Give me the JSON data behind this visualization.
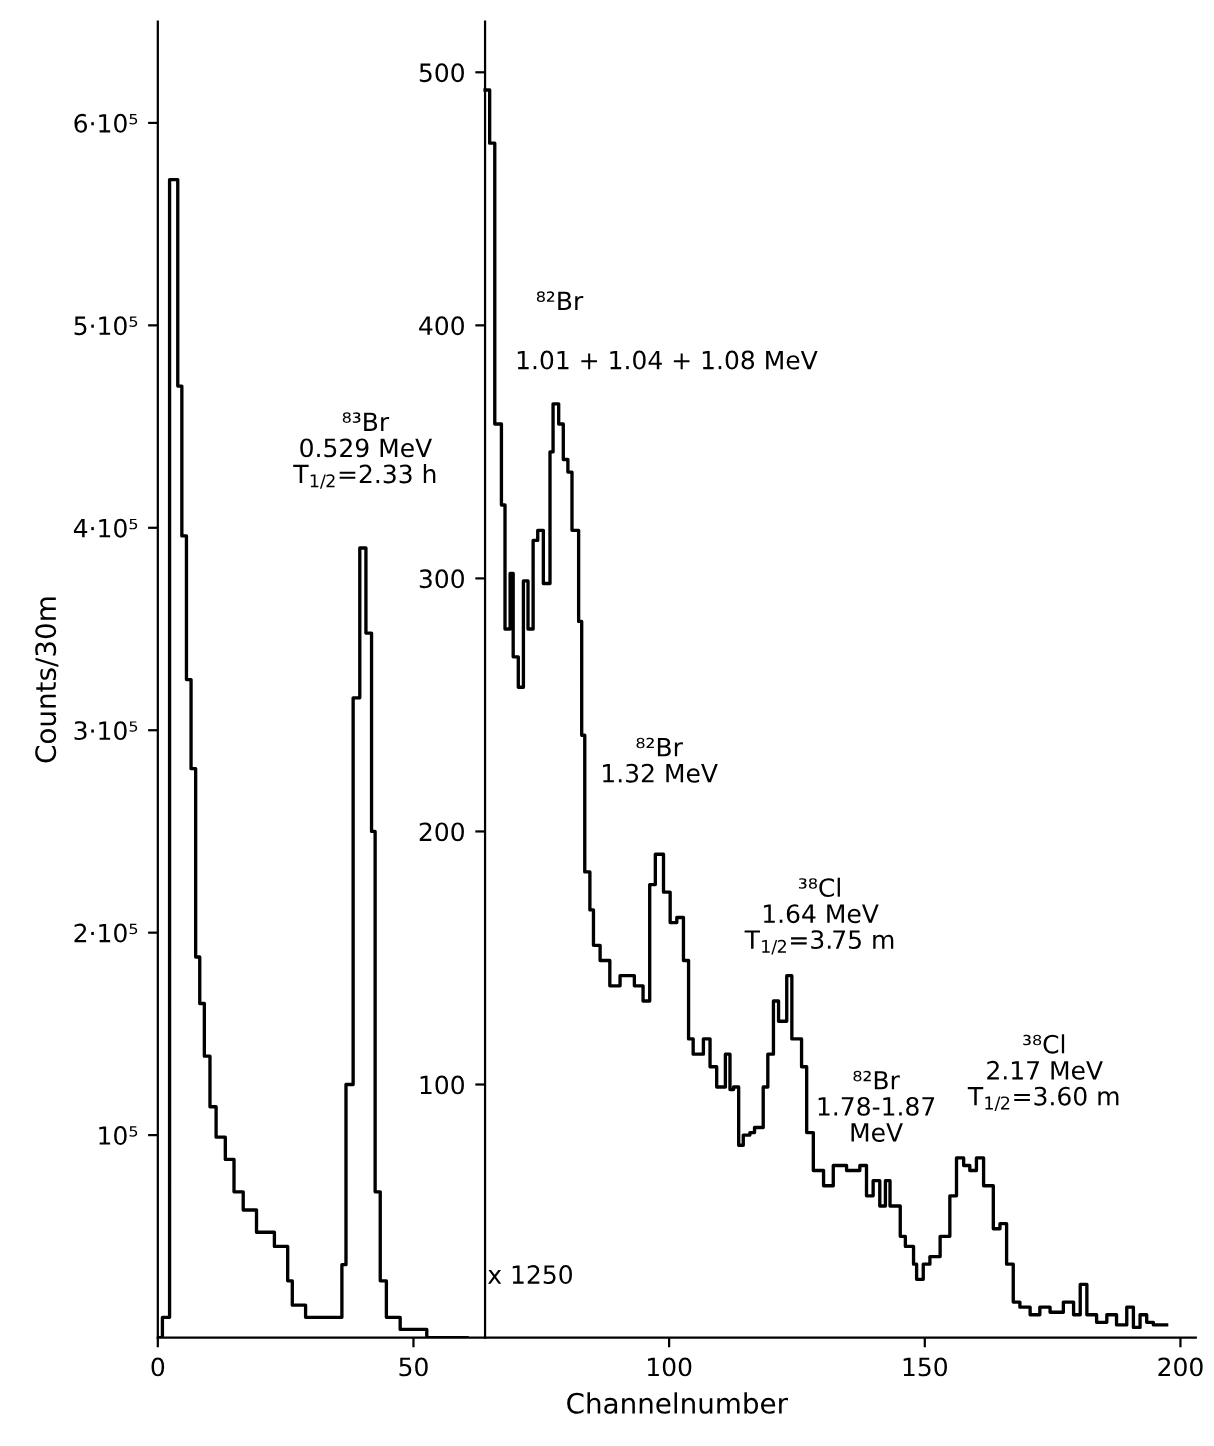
{
  "chart_data": {
    "type": "step",
    "xlabel": "Channelnumber",
    "ylabel": "Counts/30m",
    "xlim": [
      0,
      203
    ],
    "xticks": [
      0,
      50,
      100,
      150,
      200
    ],
    "ylim": [
      0,
      650000
    ],
    "yticks": [
      {
        "value": 100000,
        "label": "10⁵"
      },
      {
        "value": 200000,
        "label": "2·10⁵"
      },
      {
        "value": 300000,
        "label": "3·10⁵"
      },
      {
        "value": 400000,
        "label": "4·10⁵"
      },
      {
        "value": 500000,
        "label": "5·10⁵"
      },
      {
        "value": 600000,
        "label": "6·10⁵"
      }
    ],
    "y2lim": [
      0,
      520
    ],
    "y2ticks": [
      100,
      200,
      300,
      400,
      500
    ],
    "grid": false,
    "legend": false,
    "marker": "none",
    "line_style": "solid",
    "series": [
      {
        "color": "#000000",
        "x": [
          0,
          0.9,
          2.3,
          3.9,
          4.7,
          5.6,
          6.5,
          7.4,
          8.2,
          9.1,
          10.2,
          11.4,
          13.2,
          14.9,
          16.7,
          19.3,
          22.8,
          25.4,
          26.3,
          28.9,
          36,
          36.8,
          38.2,
          39.5,
          40.7,
          41.8,
          42.5,
          43.5,
          44.7,
          47.4,
          52.6,
          60.5
        ],
        "values": [
          0,
          10000,
          572000,
          470000,
          396000,
          325000,
          281000,
          188000,
          165000,
          139000,
          114000,
          99000,
          88000,
          72000,
          63000,
          52000,
          45000,
          28000,
          16000,
          10000,
          36000,
          125000,
          316000,
          390000,
          348000,
          250000,
          72000,
          28000,
          10000,
          4000,
          0,
          0
        ]
      },
      {
        "color": "#000000",
        "axis": "y2",
        "x": [
          64.0,
          64.9,
          65.9,
          67.2,
          67.9,
          68.9,
          69.5,
          70.5,
          71.5,
          72.4,
          73.4,
          74.3,
          75.4,
          76.7,
          77.3,
          78.4,
          79.3,
          80.2,
          81.0,
          82.3,
          82.9,
          83.5,
          84.5,
          85.2,
          86.5,
          88.4,
          90.4,
          93.2,
          94.9,
          96.2,
          97.3,
          98.9,
          100.2,
          101.5,
          102.8,
          103.8,
          104.7,
          106.7,
          108.0,
          109.3,
          111.0,
          111.9,
          112.6,
          113.6,
          114.5,
          115.8,
          116.7,
          118.4,
          119.3,
          120.4,
          121.4,
          123.0,
          124.0,
          125.9,
          126.9,
          128.2,
          130.2,
          132.1,
          134.7,
          137.3,
          138.6,
          139.9,
          141.2,
          142.3,
          143.2,
          145.2,
          146.2,
          147.8,
          148.4,
          149.7,
          151.0,
          153.0,
          154.9,
          156.2,
          157.6,
          158.8,
          160.1,
          161.5,
          163.4,
          164.7,
          166.0,
          167.3,
          168.6,
          170.6,
          172.5,
          174.5,
          177.1,
          179.1,
          180.4,
          181.7,
          183.6,
          185.6,
          187.5,
          189.5,
          190.8,
          192.1,
          193.4,
          194.7,
          197.3
        ],
        "values": [
          493,
          472,
          361,
          329,
          280,
          302,
          269,
          257,
          299,
          280,
          315,
          319,
          298,
          350,
          369,
          361,
          347,
          342,
          319,
          283,
          238,
          184,
          169,
          155,
          149,
          139,
          143,
          139,
          133,
          179,
          191,
          176,
          164,
          166,
          149,
          118,
          112,
          118,
          107,
          99,
          112,
          98,
          99,
          76,
          80,
          81,
          83,
          99,
          112,
          133,
          125,
          143,
          118,
          107,
          81,
          66,
          60,
          68,
          66,
          68,
          56,
          62,
          52,
          62,
          52,
          40,
          36,
          29,
          23,
          29,
          32,
          40,
          56,
          71,
          68,
          66,
          71,
          60,
          43,
          45,
          29,
          14,
          12,
          9,
          12,
          10,
          14,
          9,
          21,
          9,
          6,
          9,
          5,
          12,
          4,
          9,
          6,
          5,
          5
        ]
      }
    ],
    "annotations": [
      "⁸³Br\n0.529 MeV\nT$_{1/2}$=2.33 h",
      "⁸²Br",
      "1.01 + 1.04 + 1.08 MeV",
      "⁸²Br\n1.32 MeV",
      "³⁸Cl\n1.64 MeV\nT$_{1/2}$=3.75 m",
      "⁸²Br\n1.78-1.87\nMeV",
      "³⁸Cl\n2.17 MeV\nT$_{1/2}$=3.60 m",
      "x 1250"
    ]
  }
}
